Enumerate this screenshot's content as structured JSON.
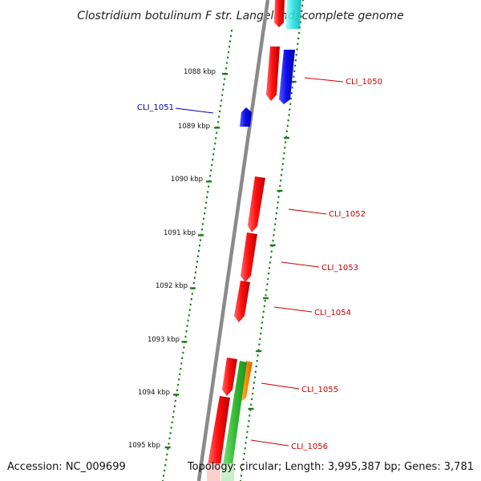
{
  "title": "Clostridium botulinum F str. Langeland, complete genome",
  "accession": "Accession: NC_009699",
  "topology": "Topology: circular; Length: 3,995,387 bp; Genes: 3,781",
  "ticks": [
    {
      "label": "1088 kbp",
      "kbp": 1088
    },
    {
      "label": "1089 kbp",
      "kbp": 1089
    },
    {
      "label": "1090 kbp",
      "kbp": 1090
    },
    {
      "label": "1091 kbp",
      "kbp": 1091
    },
    {
      "label": "1092 kbp",
      "kbp": 1092
    },
    {
      "label": "1093 kbp",
      "kbp": 1093
    },
    {
      "label": "1094 kbp",
      "kbp": 1094
    },
    {
      "label": "1095 kbp",
      "kbp": 1095
    }
  ],
  "gene_labels": [
    {
      "id": "CLI_1050",
      "color": "#cc0000"
    },
    {
      "id": "CLI_1051",
      "color": "#0000aa"
    },
    {
      "id": "CLI_1052",
      "color": "#cc0000"
    },
    {
      "id": "CLI_1053",
      "color": "#cc0000"
    },
    {
      "id": "CLI_1054",
      "color": "#cc0000"
    },
    {
      "id": "CLI_1055",
      "color": "#cc0000"
    },
    {
      "id": "CLI_1056",
      "color": "#cc0000"
    }
  ],
  "colors": {
    "backbone": "#8a8a8a",
    "tick_dots": "#1a7a1a",
    "cds_red": "#ff1a1a",
    "cds_blue": "#1010ee",
    "cds_cyan": "#22dddd",
    "cds_green": "#33bb33",
    "cds_orange": "#ff8c00"
  }
}
